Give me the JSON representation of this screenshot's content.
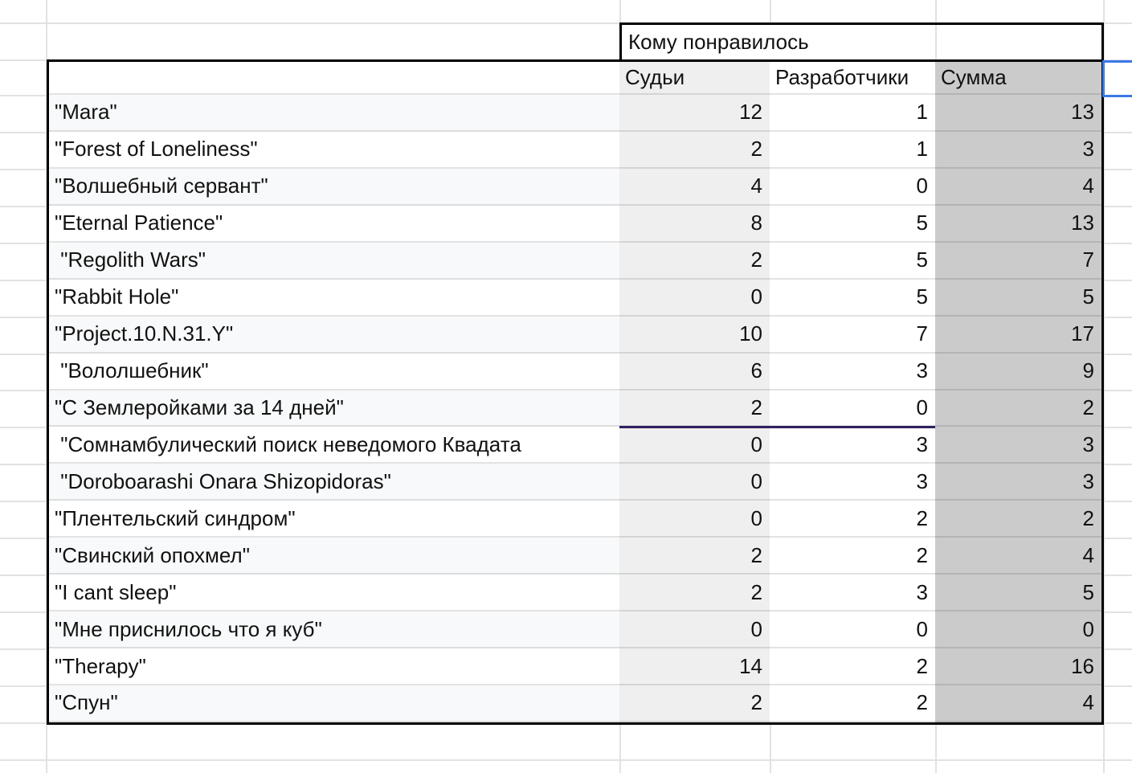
{
  "table": {
    "merged_header": {
      "label": "Кому понравилось"
    },
    "column_headers": {
      "judges": "Судьи",
      "developers": "Разработчики",
      "sum": "Сумма"
    },
    "rows": [
      {
        "name": "\"Mara\"",
        "judges": "12",
        "developers": "1",
        "sum": "13"
      },
      {
        "name": "\"Forest of Loneliness\"",
        "judges": "2",
        "developers": "1",
        "sum": "3"
      },
      {
        "name": "\"Волшебный сервант\"",
        "judges": "4",
        "developers": "0",
        "sum": "4"
      },
      {
        "name": "\"Eternal Patience\"",
        "judges": "8",
        "developers": "5",
        "sum": "13"
      },
      {
        "name": " \"Regolith Wars\"",
        "judges": "2",
        "developers": "5",
        "sum": "7"
      },
      {
        "name": "\"Rabbit Hole\"",
        "judges": "0",
        "developers": "5",
        "sum": "5"
      },
      {
        "name": "\"Project.10.N.31.Y\"",
        "judges": "10",
        "developers": "7",
        "sum": "17"
      },
      {
        "name": " \"Вололшебник\"",
        "judges": "6",
        "developers": "3",
        "sum": "9"
      },
      {
        "name": "\"С Землеройками за 14 дней\"",
        "judges": "2",
        "developers": "0",
        "sum": "2"
      },
      {
        "name": " \"Сомнамбулический поиск неведомого Квадата",
        "judges": "0",
        "developers": "3",
        "sum": "3"
      },
      {
        "name": " \"Doroboarashi Onara Shizopidoras\"",
        "judges": "0",
        "developers": "3",
        "sum": "3"
      },
      {
        "name": "\"Плентельский синдром\"",
        "judges": "0",
        "developers": "2",
        "sum": "2"
      },
      {
        "name": "\"Свинский опохмел\"",
        "judges": "2",
        "developers": "2",
        "sum": "4"
      },
      {
        "name": "\"I cant sleep\"",
        "judges": "2",
        "developers": "3",
        "sum": "5"
      },
      {
        "name": "\"Мне приснилось что я куб\"",
        "judges": "0",
        "developers": "0",
        "sum": "0"
      },
      {
        "name": "\"Therapy\"",
        "judges": "14",
        "developers": "2",
        "sum": "16"
      },
      {
        "name": "\"Спун\"",
        "judges": "2",
        "developers": "2",
        "sum": "4"
      }
    ]
  },
  "colors": {
    "judges_column_bg": "#efefef",
    "developers_column_bg": "#ffffff",
    "sum_column_bg": "#cbcbcb",
    "band_row_bg": "#f8f9fa",
    "gridline": "#e2e2e2",
    "table_border": "#000000",
    "special_row_border": "#32205f",
    "selection_border": "#3b78e7"
  }
}
